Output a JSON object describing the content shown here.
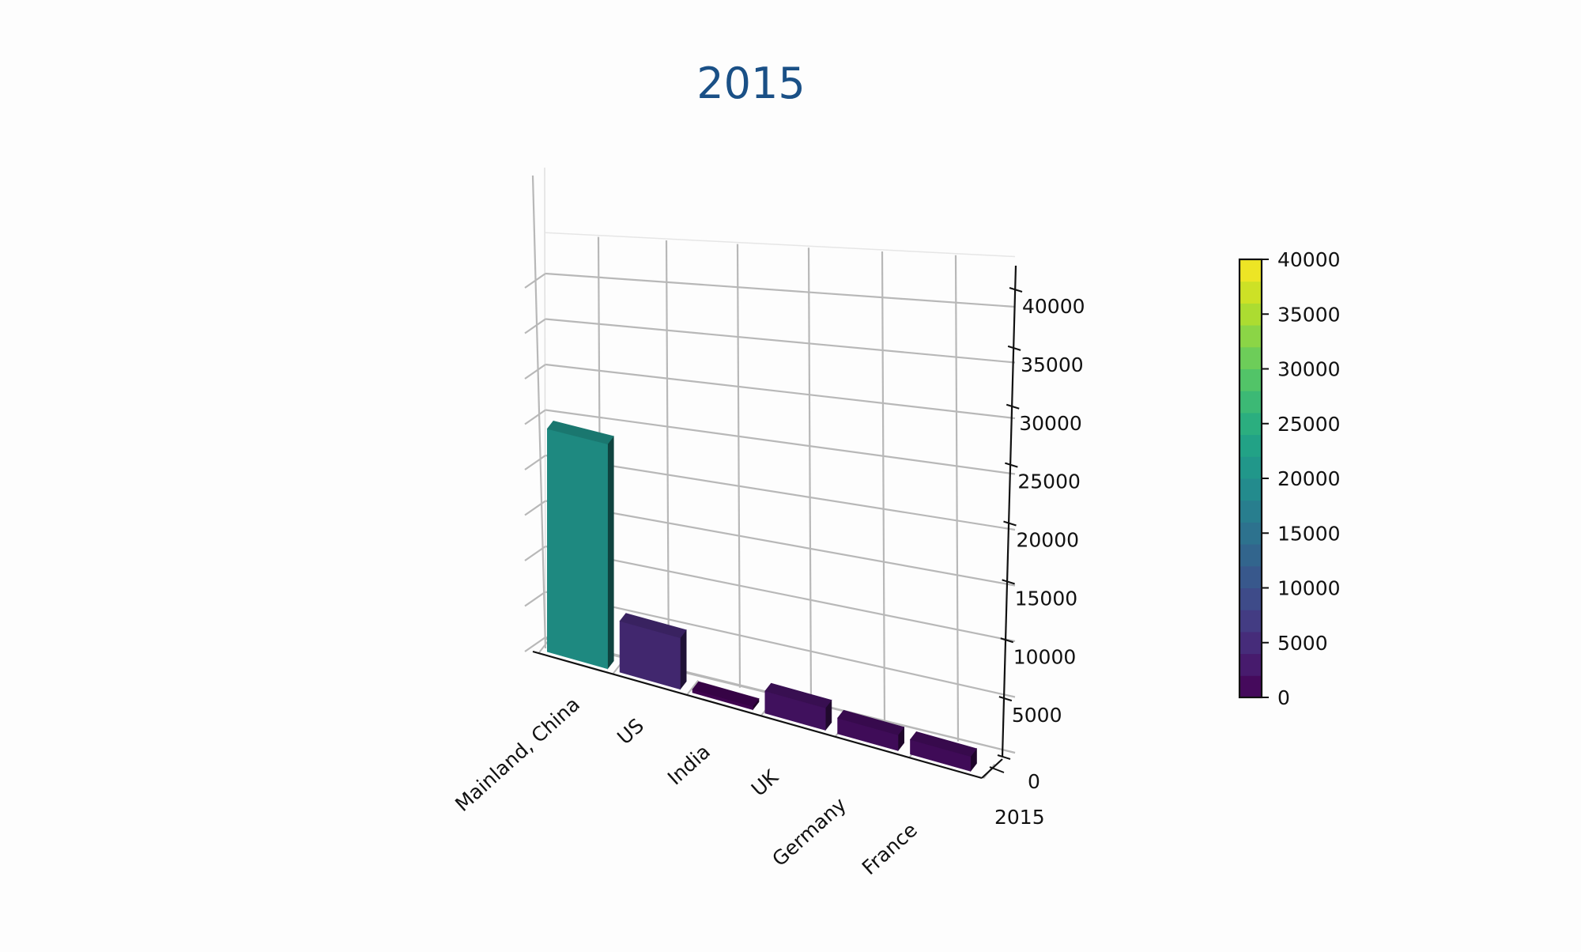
{
  "chart_data": {
    "type": "bar",
    "projection": "3d",
    "title": "2015",
    "title_color": "#1a5086",
    "categories": [
      "Mainland, China",
      "US",
      "India",
      "UK",
      "Germany",
      "France"
    ],
    "y_categories": [
      "2015"
    ],
    "series": [
      {
        "name": "2015",
        "values": [
          20700,
          4700,
          300,
          2000,
          1400,
          1300
        ]
      }
    ],
    "xlabel": "",
    "ylabel": "",
    "zlabel": "",
    "zlim": [
      0,
      40000
    ],
    "z_ticks": [
      0,
      5000,
      10000,
      15000,
      20000,
      25000,
      30000,
      35000,
      40000
    ],
    "grid": true,
    "colormap": "viridis",
    "colorbar": {
      "min": 0,
      "max": 40000,
      "ticks": [
        0,
        5000,
        10000,
        15000,
        20000,
        25000,
        30000,
        35000,
        40000
      ],
      "position": "right"
    },
    "legend": null
  }
}
